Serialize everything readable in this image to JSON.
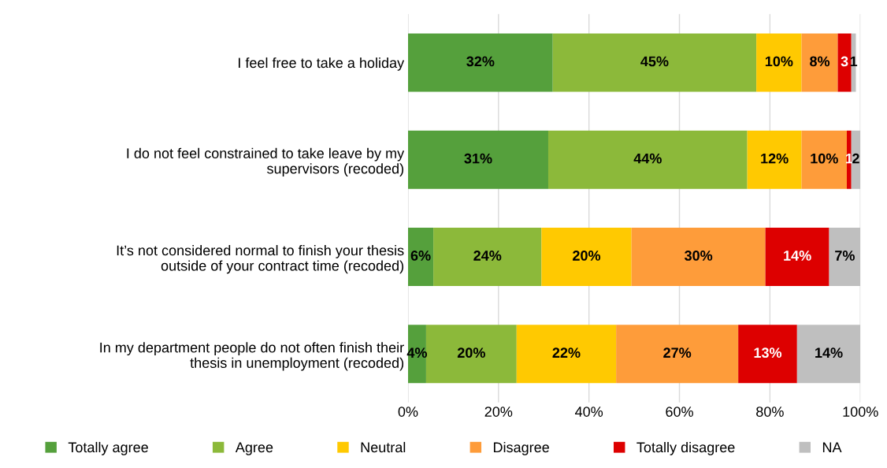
{
  "chart_data": {
    "type": "bar",
    "orientation": "horizontal",
    "stacked": true,
    "categories": [
      "I feel free to take a holiday",
      "I do not feel constrained to take leave by my\nsupervisors (recoded)",
      "It’s not considered normal to finish your thesis\noutside of your contract time (recoded)",
      "In my department people do not often finish their\nthesis in unemployment (recoded)"
    ],
    "series": [
      {
        "name": "Totally agree",
        "color": "#55a03c",
        "values": [
          32,
          31,
          5.6,
          4
        ],
        "value_labels": [
          "32%",
          "31%",
          "6%",
          "4%"
        ]
      },
      {
        "name": "Agree",
        "color": "#8cb93a",
        "values": [
          45,
          44,
          23.9,
          20
        ],
        "value_labels": [
          "45%",
          "44%",
          "24%",
          "20%"
        ]
      },
      {
        "name": "Neutral",
        "color": "#ffc901",
        "values": [
          10,
          12,
          19.9,
          22
        ],
        "value_labels": [
          "10%",
          "12%",
          "20%",
          "22%"
        ]
      },
      {
        "name": "Disagree",
        "color": "#fe9c3a",
        "values": [
          8,
          10,
          29.6,
          27
        ],
        "value_labels": [
          "8%",
          "10%",
          "30%",
          "27%"
        ]
      },
      {
        "name": "Totally disagree",
        "color": "#dd0000",
        "values": [
          3,
          1,
          14.1,
          13
        ],
        "value_labels": [
          "3",
          "1",
          "14%",
          "13%"
        ]
      },
      {
        "name": "NA",
        "color": "#bfbfbf",
        "values": [
          1,
          2,
          6.9,
          14
        ],
        "value_labels": [
          "1",
          "2",
          "7%",
          "14%"
        ]
      }
    ],
    "xlim": [
      0,
      100
    ],
    "xticks": [
      {
        "value": 0,
        "label": "0%"
      },
      {
        "value": 20,
        "label": "20%"
      },
      {
        "value": 40,
        "label": "40%"
      },
      {
        "value": 60,
        "label": "60%"
      },
      {
        "value": 80,
        "label": "80%"
      },
      {
        "value": 100,
        "label": "100%"
      }
    ],
    "grid": "x",
    "legend": "bottom"
  }
}
